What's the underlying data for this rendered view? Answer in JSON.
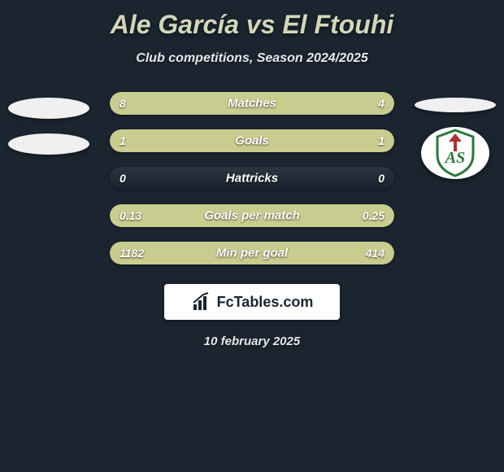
{
  "title": {
    "player1": "Ale García",
    "vs": "vs",
    "player2": "El Ftouhi"
  },
  "subtitle": "Club competitions, Season 2024/2025",
  "colors": {
    "bar_left": "#c9cc8f",
    "bar_right": "#c9cc8f",
    "bar_bg": "rgba(255,255,255,0.05)",
    "background": "#1a2530",
    "title_color": "#d4d6b8"
  },
  "stats": [
    {
      "label": "Matches",
      "left_val": "8",
      "right_val": "4",
      "left_pct": 66,
      "right_pct": 34
    },
    {
      "label": "Goals",
      "left_val": "1",
      "right_val": "1",
      "left_pct": 50,
      "right_pct": 50
    },
    {
      "label": "Hattricks",
      "left_val": "0",
      "right_val": "0",
      "left_pct": 0,
      "right_pct": 0
    },
    {
      "label": "Goals per match",
      "left_val": "0.13",
      "right_val": "0.25",
      "left_pct": 34,
      "right_pct": 66
    },
    {
      "label": "Min per goal",
      "left_val": "1182",
      "right_val": "414",
      "left_pct": 74,
      "right_pct": 26
    }
  ],
  "logo_text": "FcTables.com",
  "date": "10 february 2025",
  "badge": {
    "stroke": "#2a7a3a",
    "accent": "#b03030"
  }
}
